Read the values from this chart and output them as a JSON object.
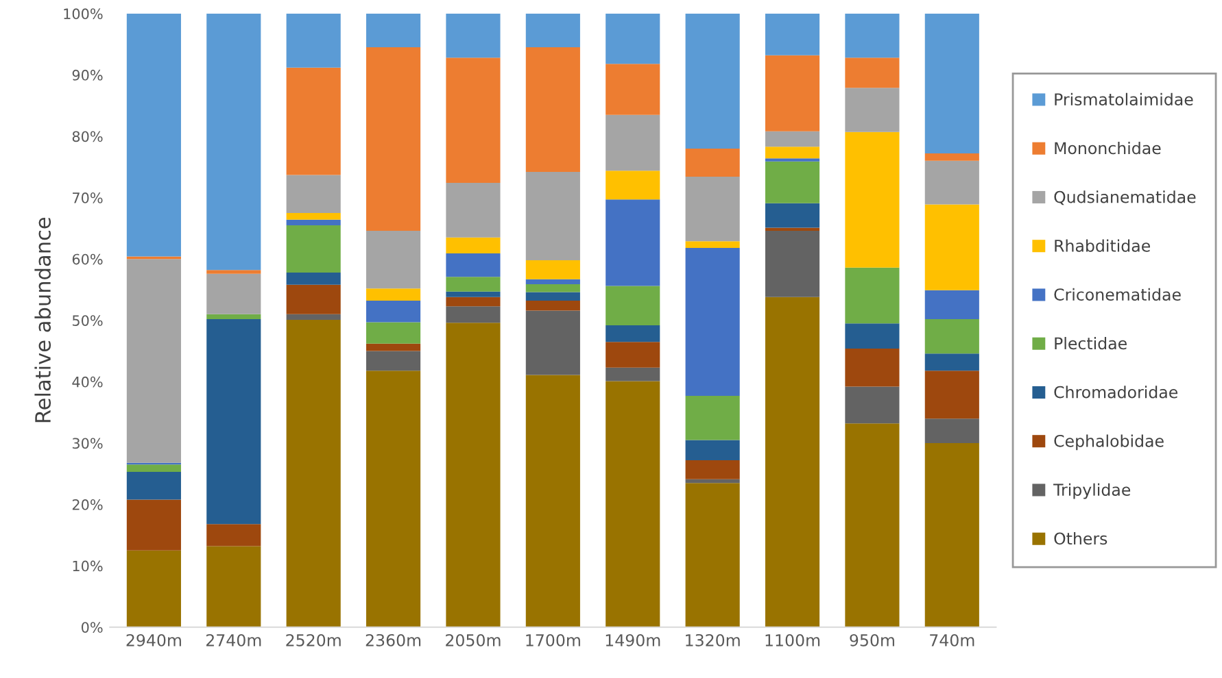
{
  "chart_data": {
    "type": "bar",
    "stacked": true,
    "ylabel": "Relative abundance",
    "categories": [
      "2940m",
      "2740m",
      "2520m",
      "2360m",
      "2050m",
      "1700m",
      "1490m",
      "1320m",
      "1100m",
      "950m",
      "740m"
    ],
    "series": [
      {
        "name": "Others",
        "color": "#997300",
        "values": [
          12.5,
          13.2,
          50.1,
          41.8,
          49.6,
          41.1,
          40.1,
          23.5,
          53.8,
          33.2,
          30.0
        ]
      },
      {
        "name": "Tripylidae",
        "color": "#636363",
        "values": [
          0,
          0,
          0.9,
          3.2,
          2.7,
          10.5,
          2.2,
          0.6,
          10.8,
          6.0,
          4.0
        ]
      },
      {
        "name": "Cephalobidae",
        "color": "#9e480e",
        "values": [
          8.3,
          3.6,
          4.8,
          1.2,
          1.5,
          1.6,
          4.2,
          3.1,
          0.5,
          6.2,
          7.8
        ]
      },
      {
        "name": "Chromadoridae",
        "color": "#255e91",
        "values": [
          4.5,
          33.4,
          2.0,
          0,
          0.9,
          1.4,
          2.7,
          3.3,
          4.0,
          4.1,
          2.8
        ]
      },
      {
        "name": "Plectidae",
        "color": "#70ad47",
        "values": [
          1.2,
          0.8,
          7.7,
          3.5,
          2.4,
          1.3,
          6.4,
          7.2,
          6.8,
          9.1,
          5.6
        ]
      },
      {
        "name": "Criconematidae",
        "color": "#4472c4",
        "values": [
          0.3,
          0,
          0.9,
          3.5,
          3.8,
          0.8,
          14.1,
          24.1,
          0.5,
          0,
          4.7
        ]
      },
      {
        "name": "Rhabditidae",
        "color": "#ffc000",
        "values": [
          0,
          0,
          1.1,
          2.0,
          2.6,
          3.1,
          4.7,
          1.1,
          1.9,
          22.1,
          14.0
        ]
      },
      {
        "name": "Qudsianematidae",
        "color": "#a5a5a5",
        "values": [
          33.2,
          6.6,
          6.2,
          9.4,
          8.9,
          14.4,
          9.1,
          10.5,
          2.5,
          7.2,
          7.1
        ]
      },
      {
        "name": "Mononchidae",
        "color": "#ed7d31",
        "values": [
          0.4,
          0.6,
          17.5,
          29.9,
          20.4,
          20.3,
          8.3,
          4.6,
          12.4,
          4.9,
          1.2
        ]
      },
      {
        "name": "Prismatolaimidae",
        "color": "#5b9bd5",
        "values": [
          39.6,
          41.8,
          8.8,
          5.5,
          7.2,
          5.5,
          8.2,
          22.0,
          6.8,
          7.2,
          22.8
        ]
      }
    ],
    "ylim": [
      0,
      100
    ],
    "yticks": [
      {
        "value": 0,
        "label": "0%"
      },
      {
        "value": 10,
        "label": "10%"
      },
      {
        "value": 20,
        "label": "20%"
      },
      {
        "value": 30,
        "label": "30%"
      },
      {
        "value": 40,
        "label": "40%"
      },
      {
        "value": 50,
        "label": "50%"
      },
      {
        "value": 60,
        "label": "60%"
      },
      {
        "value": 70,
        "label": "70%"
      },
      {
        "value": 80,
        "label": "80%"
      },
      {
        "value": 90,
        "label": "90%"
      },
      {
        "value": 100,
        "label": "100%"
      }
    ],
    "grid": false,
    "legend": "right"
  }
}
